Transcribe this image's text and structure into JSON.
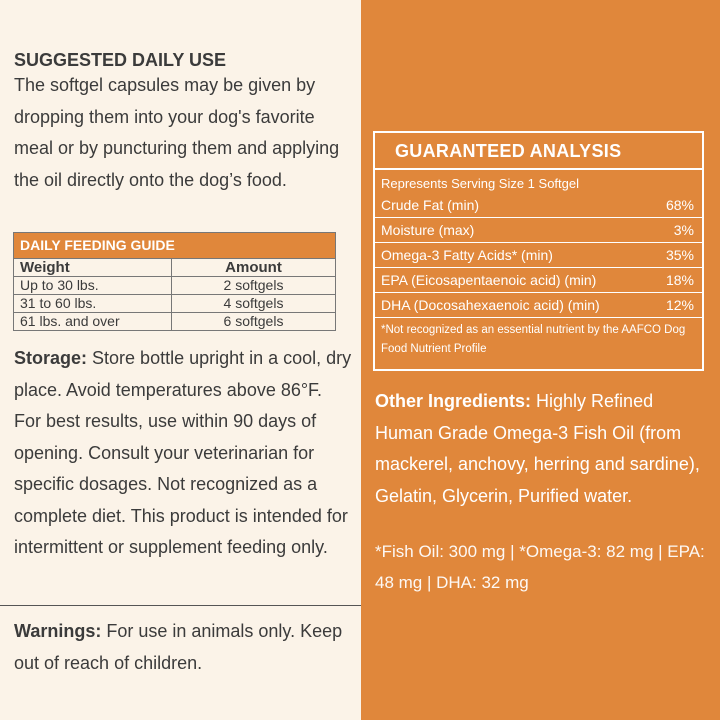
{
  "left": {
    "suggested": {
      "heading": "SUGGESTED DAILY USE",
      "text": "The softgel capsules may be given by dropping them into your dog's favorite meal or by puncturing them and applying the oil directly onto the dog’s food."
    },
    "feeding_guide": {
      "title": "DAILY FEEDING GUIDE",
      "header": [
        "Weight",
        "Amount"
      ],
      "rows": [
        [
          "Up to 30 lbs.",
          "2 softgels"
        ],
        [
          "31 to 60 lbs.",
          "4 softgels"
        ],
        [
          "61 lbs. and over",
          "6 softgels"
        ]
      ]
    },
    "storage": {
      "label": "Storage:",
      "text": "Store bottle upright in a cool, dry place. Avoid temperatures above 86°F.  For best results, use within 90 days of opening. Consult your veterinarian for specific dosages. Not recognized as a complete diet. This product is intended for intermittent or supplement feeding only."
    },
    "warnings": {
      "label": "Warnings:",
      "text": "For use in animals only. Keep out of reach of children."
    }
  },
  "right": {
    "analysis": {
      "title": "GUARANTEED ANALYSIS",
      "serving": "Represents Serving Size 1 Softgel",
      "rows": [
        [
          "Crude Fat (min)",
          "68%"
        ],
        [
          "Moisture (max)",
          "3%"
        ],
        [
          "Omega-3 Fatty Acids* (min)",
          "35%"
        ],
        [
          "EPA (Eicosapentaenoic acid) (min)",
          "18%"
        ],
        [
          "DHA (Docosahexaenoic acid) (min)",
          "12%"
        ]
      ],
      "footnote": "*Not recognized as an essential nutrient by the AAFCO Dog Food Nutrient Profile"
    },
    "ingredients": {
      "label": "Other Ingredients:",
      "text": "Highly Refined Human Grade Omega-3 Fish Oil (from mackerel, anchovy, herring and sardine), Gelatin, Glycerin, Purified water."
    },
    "amounts": "*Fish Oil: 300 mg | *Omega-3: 82 mg | EPA: 48 mg | DHA: 32 mg"
  }
}
